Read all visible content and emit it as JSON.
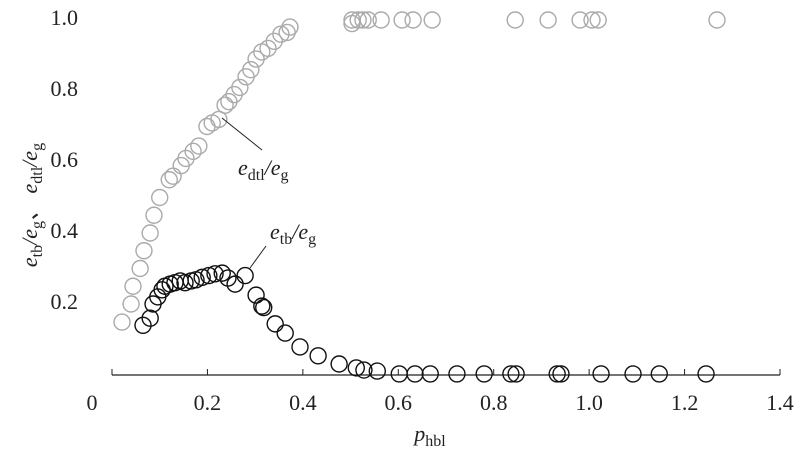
{
  "chart_data": {
    "type": "scatter",
    "x_label": [
      "p",
      "hbl"
    ],
    "y_label": [
      "e",
      "tb",
      "/e",
      "g",
      "、 e",
      "dtl",
      "/e",
      "g"
    ],
    "xlim": [
      0,
      1.4
    ],
    "ylim": [
      0,
      1
    ],
    "xticks": [
      0,
      0.2,
      0.4,
      0.6,
      0.8,
      {
        "value": 1,
        "label": "1.0"
      },
      1.2,
      1.4
    ],
    "yticks": [
      0.2,
      0.4,
      0.6,
      0.8,
      {
        "value": 1,
        "label": "1.0"
      }
    ],
    "series": [
      {
        "name": [
          "e",
          "dtl",
          "/e",
          "g"
        ],
        "color": "#aaaaaa",
        "x": [
          0.021,
          0.04,
          0.044,
          0.059,
          0.067,
          0.08,
          0.088,
          0.1,
          0.12,
          0.128,
          0.145,
          0.155,
          0.17,
          0.182,
          0.199,
          0.21,
          0.224,
          0.237,
          0.245,
          0.256,
          0.268,
          0.281,
          0.291,
          0.302,
          0.314,
          0.327,
          0.34,
          0.354,
          0.367,
          0.373,
          0.503,
          0.503,
          0.516,
          0.526,
          0.537,
          0.564,
          0.608,
          0.631,
          0.671,
          0.845,
          0.914,
          0.981,
          1.006,
          1.019,
          1.268
        ],
        "values": [
          0.149,
          0.2,
          0.25,
          0.3,
          0.35,
          0.4,
          0.45,
          0.5,
          0.55,
          0.56,
          0.59,
          0.61,
          0.63,
          0.645,
          0.7,
          0.71,
          0.72,
          0.76,
          0.77,
          0.79,
          0.81,
          0.84,
          0.86,
          0.89,
          0.91,
          0.92,
          0.94,
          0.96,
          0.965,
          0.98,
          0.99,
          1,
          1,
          1,
          1,
          1,
          1,
          1,
          1,
          1,
          1,
          1,
          1,
          1,
          1
        ]
      },
      {
        "name": [
          "e",
          "tb",
          "/e",
          "g"
        ],
        "color": "#111111",
        "x": [
          0.065,
          0.08,
          0.086,
          0.096,
          0.105,
          0.111,
          0.122,
          0.132,
          0.143,
          0.153,
          0.166,
          0.176,
          0.189,
          0.203,
          0.216,
          0.231,
          0.243,
          0.258,
          0.279,
          0.302,
          0.314,
          0.318,
          0.342,
          0.363,
          0.394,
          0.432,
          0.476,
          0.512,
          0.528,
          0.556,
          0.602,
          0.635,
          0.667,
          0.723,
          0.78,
          0.836,
          0.847,
          0.933,
          0.941,
          1.025,
          1.092,
          1.147,
          1.245
        ],
        "values": [
          0.14,
          0.16,
          0.2,
          0.22,
          0.24,
          0.25,
          0.256,
          0.26,
          0.265,
          0.26,
          0.265,
          0.268,
          0.275,
          0.28,
          0.285,
          0.287,
          0.273,
          0.256,
          0.28,
          0.225,
          0.194,
          0.19,
          0.144,
          0.118,
          0.079,
          0.054,
          0.031,
          0.02,
          0.014,
          0.011,
          0.003,
          0.003,
          0.003,
          0.003,
          0.003,
          0.003,
          0.003,
          0.003,
          0.003,
          0.003,
          0.003,
          0.003,
          0.003
        ]
      }
    ]
  }
}
